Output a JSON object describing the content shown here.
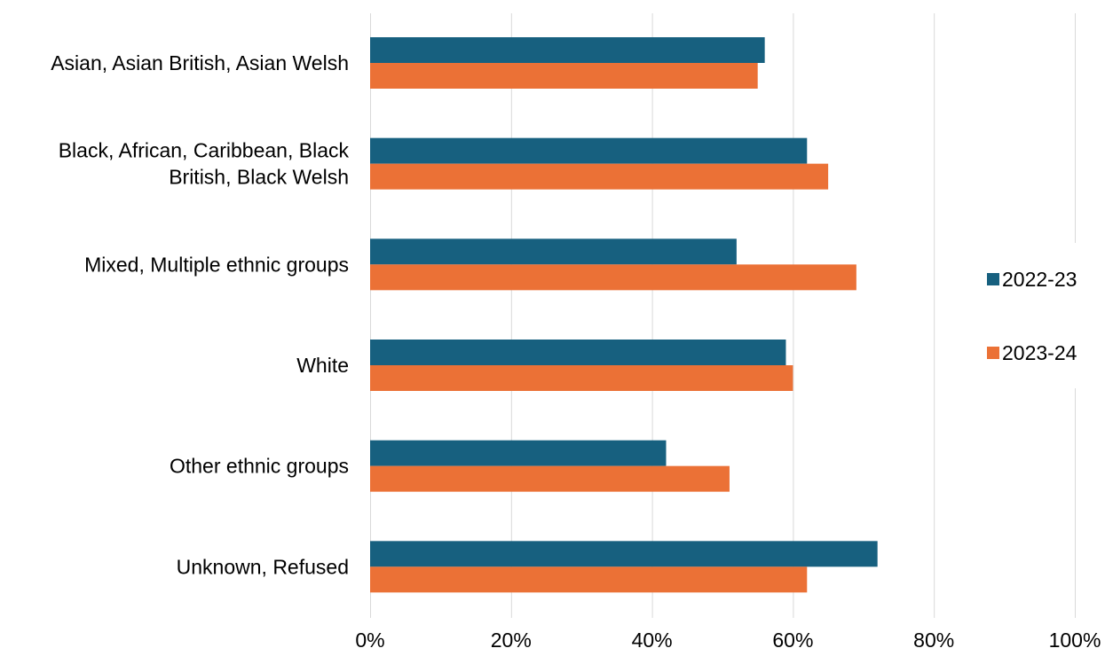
{
  "chart_data": {
    "type": "bar",
    "orientation": "horizontal",
    "categories": [
      [
        "Asian, Asian British, Asian Welsh"
      ],
      [
        "Black, African, Caribbean, Black",
        "British, Black Welsh"
      ],
      [
        "Mixed, Multiple ethnic groups"
      ],
      [
        "White"
      ],
      [
        "Other ethnic groups"
      ],
      [
        "Unknown, Refused"
      ]
    ],
    "series": [
      {
        "name": "2022-23",
        "color": "#17607f",
        "values": [
          56,
          62,
          52,
          59,
          42,
          72
        ]
      },
      {
        "name": "2023-24",
        "color": "#eb7136",
        "values": [
          55,
          65,
          69,
          60,
          51,
          62
        ]
      }
    ],
    "xlim": [
      0,
      100
    ],
    "x_ticks": [
      0,
      20,
      40,
      60,
      80,
      100
    ],
    "x_tick_labels": [
      "0%",
      "20%",
      "40%",
      "60%",
      "80%",
      "100%"
    ],
    "grid": "vertical",
    "gridline_color": "#d9d9d9",
    "legend_position": "right",
    "title": "",
    "xlabel": "",
    "ylabel": ""
  }
}
